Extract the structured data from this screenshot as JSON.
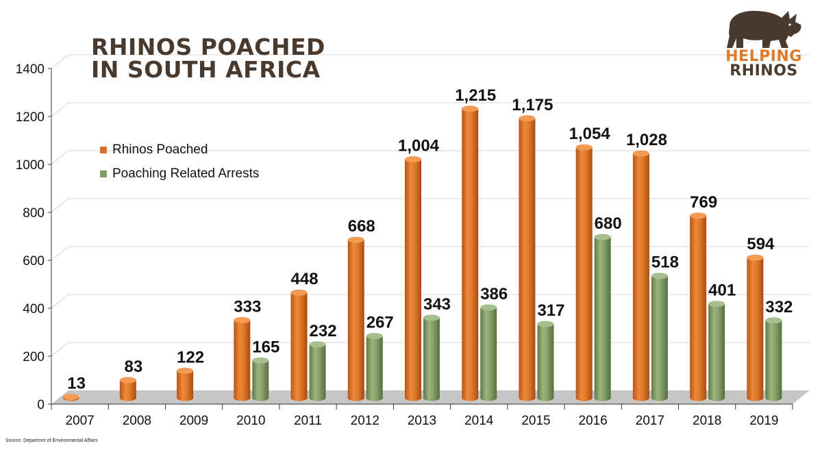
{
  "title": {
    "line1": "RHINOS POACHED",
    "line2": "IN SOUTH AFRICA"
  },
  "logo": {
    "word1": "HELPING",
    "word2": "RHINOS",
    "icon": "rhino-icon"
  },
  "source": "Source: Departmnt of Environmental Affairs",
  "colors": {
    "poached": "#d97127",
    "arrests": "#7f9a63",
    "title": "#4a3a2e",
    "floor": "#c6c6c6"
  },
  "chart_data": {
    "type": "bar",
    "categories": [
      "2007",
      "2008",
      "2009",
      "2010",
      "2011",
      "2012",
      "2013",
      "2014",
      "2015",
      "2016",
      "2017",
      "2018",
      "2019"
    ],
    "series": [
      {
        "name": "Rhinos Poached",
        "values": [
          13,
          83,
          122,
          333,
          448,
          668,
          1004,
          1215,
          1175,
          1054,
          1028,
          769,
          594
        ],
        "labels": [
          "13",
          "83",
          "122",
          "333",
          "448",
          "668",
          "1,004",
          "1,215",
          "1,175",
          "1,054",
          "1,028",
          "769",
          "594"
        ]
      },
      {
        "name": "Poaching Related Arrests",
        "values": [
          null,
          null,
          null,
          165,
          232,
          267,
          343,
          386,
          317,
          680,
          518,
          401,
          332
        ],
        "labels": [
          "",
          "",
          "",
          "165",
          "232",
          "267",
          "343",
          "386",
          "317",
          "680",
          "518",
          "401",
          "332"
        ]
      }
    ],
    "y_ticks": [
      "0",
      "200",
      "400",
      "600",
      "800",
      "1000",
      "1200",
      "1400"
    ],
    "ylim": [
      0,
      1400
    ],
    "legend": "upper-left",
    "grid": true
  }
}
